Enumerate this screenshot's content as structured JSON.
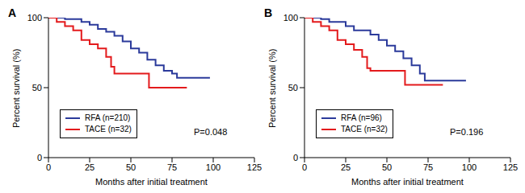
{
  "chart_data": [
    {
      "type": "line",
      "title": "A",
      "line_style": "step",
      "legend": "lower left",
      "annotation": "P=0.048",
      "x_label": "Months after initial treatment",
      "y_label": "Percent survival (%)",
      "xlim": [
        0,
        125
      ],
      "xticks": [
        0,
        25,
        50,
        75,
        100,
        125
      ],
      "ylim": [
        0,
        100
      ],
      "yticks": [
        0,
        50,
        100
      ],
      "series": [
        {
          "name": "RFA (n=210)",
          "color": "#2b3a9b",
          "x": [
            0,
            10,
            20,
            25,
            30,
            35,
            40,
            45,
            50,
            55,
            60,
            65,
            70,
            75,
            78,
            98
          ],
          "values": [
            100,
            99,
            97,
            95,
            92,
            90,
            87,
            83,
            78,
            75,
            70,
            66,
            62,
            60,
            57,
            57
          ]
        },
        {
          "name": "TACE (n=32)",
          "color": "#e31a1c",
          "x": [
            0,
            5,
            10,
            15,
            20,
            25,
            30,
            35,
            38,
            40,
            61,
            84
          ],
          "values": [
            100,
            97,
            94,
            91,
            84,
            81,
            78,
            72,
            65,
            60,
            50,
            50
          ]
        }
      ]
    },
    {
      "type": "line",
      "title": "B",
      "line_style": "step",
      "legend": "lower left",
      "annotation": "P=0.196",
      "x_label": "Months after initial treatment",
      "y_label": "Percent survival (%)",
      "xlim": [
        0,
        125
      ],
      "xticks": [
        0,
        25,
        50,
        75,
        100,
        125
      ],
      "ylim": [
        0,
        100
      ],
      "yticks": [
        0,
        50,
        100
      ],
      "series": [
        {
          "name": "RFA (n=96)",
          "color": "#2b3a9b",
          "x": [
            0,
            10,
            15,
            25,
            30,
            40,
            45,
            50,
            55,
            60,
            65,
            70,
            73,
            98
          ],
          "values": [
            100,
            99,
            97,
            94,
            91,
            88,
            84,
            80,
            76,
            71,
            66,
            60,
            55,
            55
          ]
        },
        {
          "name": "TACE (n=32)",
          "color": "#e31a1c",
          "x": [
            0,
            5,
            10,
            15,
            20,
            25,
            30,
            35,
            38,
            40,
            61,
            84
          ],
          "values": [
            100,
            97,
            94,
            91,
            84,
            81,
            77,
            72,
            64,
            62,
            52,
            52
          ]
        }
      ]
    }
  ]
}
